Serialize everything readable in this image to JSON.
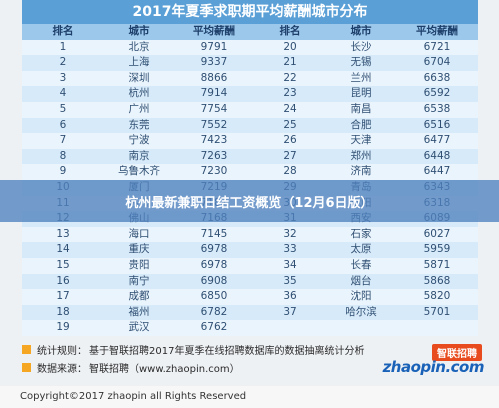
{
  "title": "2017年夏季求职期平均薪酬城市分布",
  "headers": [
    "排名",
    "城市",
    "平均薪酬",
    "排名",
    "城市",
    "平均薪酬"
  ],
  "rows": [
    [
      "1",
      "北京",
      "9791",
      "20",
      "长沙",
      "6721"
    ],
    [
      "2",
      "上海",
      "9337",
      "21",
      "无锡",
      "6704"
    ],
    [
      "3",
      "深圳",
      "8866",
      "22",
      "兰州",
      "6638"
    ],
    [
      "4",
      "杭州",
      "7914",
      "23",
      "昆明",
      "6592"
    ],
    [
      "5",
      "广州",
      "7754",
      "24",
      "南昌",
      "6538"
    ],
    [
      "6",
      "东莞",
      "7552",
      "25",
      "合肥",
      "6516"
    ],
    [
      "7",
      "宁波",
      "7423",
      "26",
      "天津",
      "6477"
    ],
    [
      "8",
      "南京",
      "7263",
      "27",
      "郑州",
      "6448"
    ],
    [
      "9",
      "乌鲁木齐",
      "7230",
      "28",
      "济南",
      "6447"
    ],
    [
      "10",
      "厦门",
      "7219",
      "29",
      "青岛",
      "6343"
    ],
    [
      "11",
      "苏州",
      "7187",
      "30",
      "沈阳",
      "6318"
    ],
    [
      "12",
      "佛山",
      "7168",
      "31",
      "西安",
      "6089"
    ],
    [
      "13",
      "海口",
      "7145",
      "32",
      "石家",
      "6027"
    ],
    [
      "14",
      "重庆",
      "6978",
      "33",
      "太原",
      "5959"
    ],
    [
      "15",
      "贵阳",
      "6978",
      "34",
      "长春",
      "5871"
    ],
    [
      "16",
      "南宁",
      "6908",
      "35",
      "烟台",
      "5868"
    ],
    [
      "17",
      "成都",
      "6850",
      "36",
      "沈阳",
      "5820"
    ],
    [
      "18",
      "福州",
      "6782",
      "37",
      "哈尔滨",
      "5701"
    ],
    [
      "19",
      "武汉",
      "6762",
      "",
      "",
      ""
    ]
  ],
  "overlay_text": "杭州最新兼职日结工资概览（12月6日版）",
  "notes": [
    {
      "label": "统计规则：",
      "text": "基于智联招聘2017年夏季在线招聘数据库的数据抽离统计分析"
    },
    {
      "label": "数据来源：",
      "text": "智联招聘（www.zhaopin.com）"
    }
  ],
  "logo": {
    "cn": "智联招聘",
    "en": "zhaopin.com"
  },
  "footer": "Copyright©2017 zhaopin all Rights Reserved",
  "colors": {
    "header_bg": "#5a9fd6",
    "col_header_bg": "#9cc8ec",
    "row_odd": "#eaf4fc",
    "row_even": "#d7eaf9",
    "overlay": "#5082be",
    "bullet": "#f5a623",
    "logo_red": "#e84c1e",
    "logo_blue": "#1a62b8"
  }
}
